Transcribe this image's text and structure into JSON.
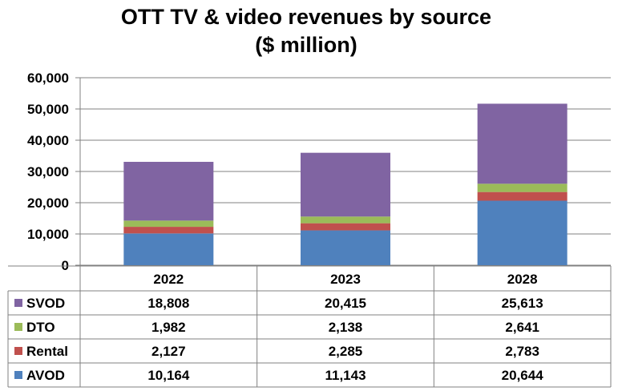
{
  "chart_data": {
    "type": "bar",
    "stacked": true,
    "title": "OTT TV & video revenues by source",
    "subtitle": "($ million)",
    "xlabel": "",
    "ylabel": "",
    "categories": [
      "2022",
      "2023",
      "2028"
    ],
    "ylim": [
      0,
      60000
    ],
    "yticks": [
      "0",
      "10,000",
      "20,000",
      "30,000",
      "40,000",
      "50,000",
      "60,000"
    ],
    "grid": true,
    "legend": "data-table-left",
    "series": [
      {
        "name": "AVOD",
        "color": "#4f81bd",
        "values": [
          10164,
          11143,
          20644
        ],
        "labels": [
          "10,164",
          "11,143",
          "20,644"
        ]
      },
      {
        "name": "Rental",
        "color": "#c0504d",
        "values": [
          2127,
          2285,
          2783
        ],
        "labels": [
          "2,127",
          "2,285",
          "2,783"
        ]
      },
      {
        "name": "DTO",
        "color": "#9bbb59",
        "values": [
          1982,
          2138,
          2641
        ],
        "labels": [
          "1,982",
          "2,138",
          "2,641"
        ]
      },
      {
        "name": "SVOD",
        "color": "#8064a2",
        "values": [
          18808,
          20415,
          25613
        ],
        "labels": [
          "18,808",
          "20,415",
          "25,613"
        ]
      }
    ],
    "table_order": [
      "SVOD",
      "DTO",
      "Rental",
      "AVOD"
    ]
  }
}
